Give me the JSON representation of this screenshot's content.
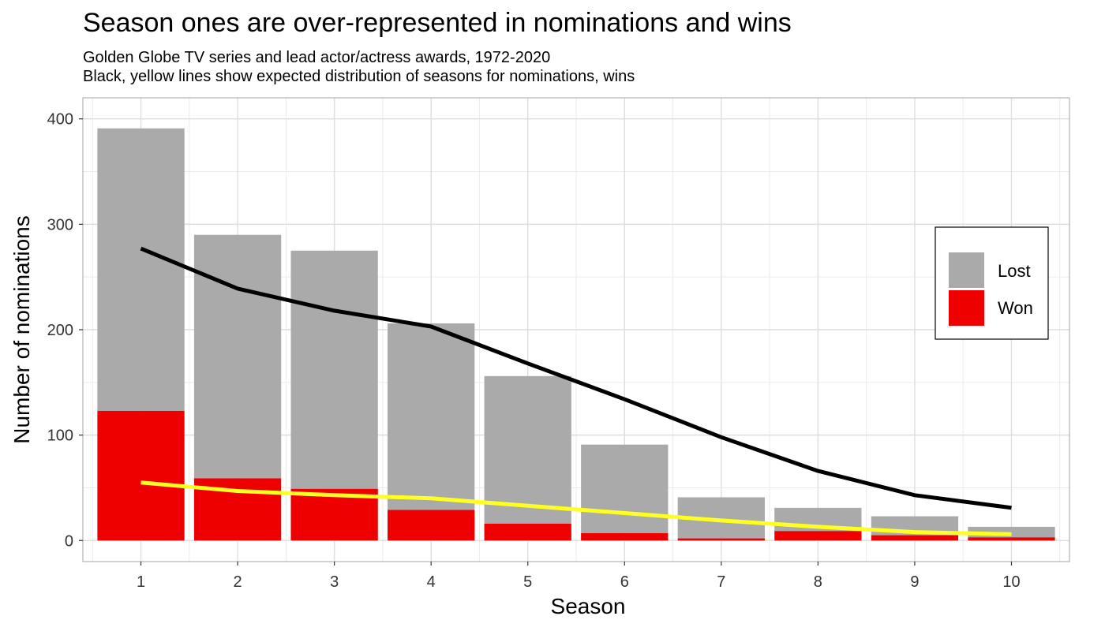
{
  "chart_data": {
    "type": "bar",
    "title": "Season ones are over-represented in nominations and wins",
    "subtitle": [
      "Golden Globe TV series and lead actor/actress awards, 1972-2020",
      "Black, yellow lines show expected distribution of seasons for nominations, wins"
    ],
    "xlabel": "Season",
    "ylabel": "Number of nominations",
    "categories": [
      "1",
      "2",
      "3",
      "4",
      "5",
      "6",
      "7",
      "8",
      "9",
      "10"
    ],
    "stacked": true,
    "series": [
      {
        "name": "Won",
        "color": "#ee0000",
        "values": [
          123,
          59,
          49,
          29,
          16,
          7,
          2,
          9,
          5,
          3
        ]
      },
      {
        "name": "Lost",
        "color": "#aaaaaa",
        "values": [
          268,
          231,
          226,
          177,
          140,
          84,
          39,
          22,
          18,
          10
        ]
      }
    ],
    "lines": [
      {
        "color": "#000000",
        "values": [
          277,
          239,
          218,
          203,
          168,
          134,
          98,
          66,
          43,
          31
        ]
      },
      {
        "color": "#ffff22",
        "values": [
          55,
          47,
          43,
          40,
          33,
          26,
          19,
          13,
          8,
          6
        ]
      }
    ],
    "ylim": [
      -20,
      420
    ],
    "yticks": [
      0,
      100,
      200,
      300,
      400
    ],
    "grid": true,
    "legend": {
      "position": "right",
      "order": [
        "Lost",
        "Won"
      ]
    }
  }
}
